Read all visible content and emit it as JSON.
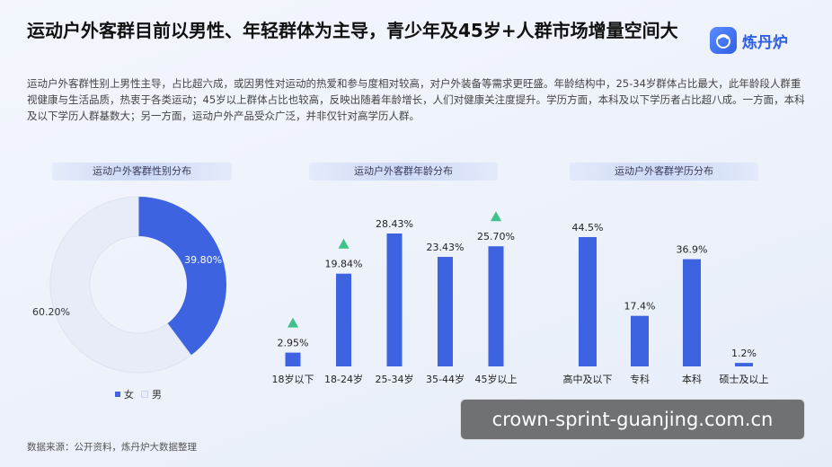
{
  "header": {
    "title": "运动户外客群目前以男性、年轻群体为主导，青少年及45岁+人群市场增量空间大",
    "logo_text": "炼丹炉"
  },
  "intro_text": "运动户外客群性别上男性主导，占比超六成，或因男性对运动的热爱和参与度相对较高，对户外装备等需求更旺盛。年龄结构中，25-34岁群体占比最大，此年龄段人群重视健康与生活品质，热衷于各类运动；45岁以上群体占比也较高，反映出随着年龄增长，人们对健康关注度提升。学历方面，本科及以下学历者占比超八成。一方面，本科及以下学历人群基数大；另一方面，运动户外产品受众广泛，并非仅针对高学历人群。",
  "colors": {
    "accent": "#3d63e0",
    "light": "#e7ecf8",
    "triangle": "#3cc28a"
  },
  "chart_data": [
    {
      "type": "pie",
      "title": "运动户外客群性别分布",
      "slices": [
        {
          "label": "女",
          "value": 39.8,
          "value_label": "39.80%"
        },
        {
          "label": "男",
          "value": 60.2,
          "value_label": "60.20%"
        }
      ],
      "legend": [
        "女",
        "男"
      ],
      "legend_placement": "bottom"
    },
    {
      "type": "bar",
      "title": "运动户外客群年龄分布",
      "categories": [
        "18岁以下",
        "18-24岁",
        "25-34岁",
        "35-44岁",
        "45岁以上"
      ],
      "values": [
        2.95,
        19.84,
        28.43,
        23.43,
        25.7
      ],
      "value_labels": [
        "2.95%",
        "19.84%",
        "28.43%",
        "23.43%",
        "25.70%"
      ],
      "highlighted": [
        "18岁以下",
        "18-24岁",
        "45岁以上"
      ]
    },
    {
      "type": "bar",
      "title": "运动户外客群学历分布",
      "categories": [
        "高中及以下",
        "专科",
        "本科",
        "硕士及以上"
      ],
      "values": [
        44.5,
        17.4,
        36.9,
        1.2
      ],
      "value_labels": [
        "44.5%",
        "17.4%",
        "36.9%",
        "1.2%"
      ]
    }
  ],
  "source": "数据来源：公开资料，炼丹炉大数据整理",
  "watermark": "crown-sprint-guanjing.com.cn"
}
